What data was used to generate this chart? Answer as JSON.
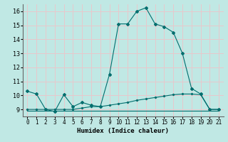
{
  "xlabel": "Humidex (Indice chaleur)",
  "x_ticks": [
    0,
    1,
    2,
    3,
    4,
    5,
    6,
    7,
    8,
    9,
    10,
    11,
    12,
    13,
    14,
    15,
    16,
    17,
    18,
    19,
    20,
    21
  ],
  "ylim": [
    8.5,
    16.5
  ],
  "xlim": [
    -0.5,
    21.5
  ],
  "y_ticks": [
    9,
    10,
    11,
    12,
    13,
    14,
    15,
    16
  ],
  "background_color": "#c0e8e4",
  "grid_color": "#e8c8cc",
  "line_color": "#006e6e",
  "line1": [
    10.3,
    10.1,
    9.0,
    8.85,
    10.05,
    9.2,
    9.5,
    9.3,
    9.2,
    11.5,
    15.1,
    15.1,
    16.0,
    16.25,
    15.1,
    14.9,
    14.5,
    13.0,
    10.5,
    10.1,
    9.0,
    9.0
  ],
  "line2": [
    8.9,
    8.9,
    8.9,
    8.9,
    8.9,
    8.9,
    8.9,
    8.9,
    8.9,
    8.9,
    8.9,
    8.9,
    8.9,
    8.9,
    8.9,
    8.9,
    8.9,
    8.9,
    8.9,
    8.9,
    8.9,
    8.9
  ],
  "line3": [
    9.0,
    9.0,
    9.0,
    9.0,
    9.0,
    9.0,
    9.1,
    9.2,
    9.2,
    9.3,
    9.4,
    9.5,
    9.65,
    9.75,
    9.85,
    9.95,
    10.05,
    10.1,
    10.1,
    10.05,
    9.0,
    9.0
  ]
}
